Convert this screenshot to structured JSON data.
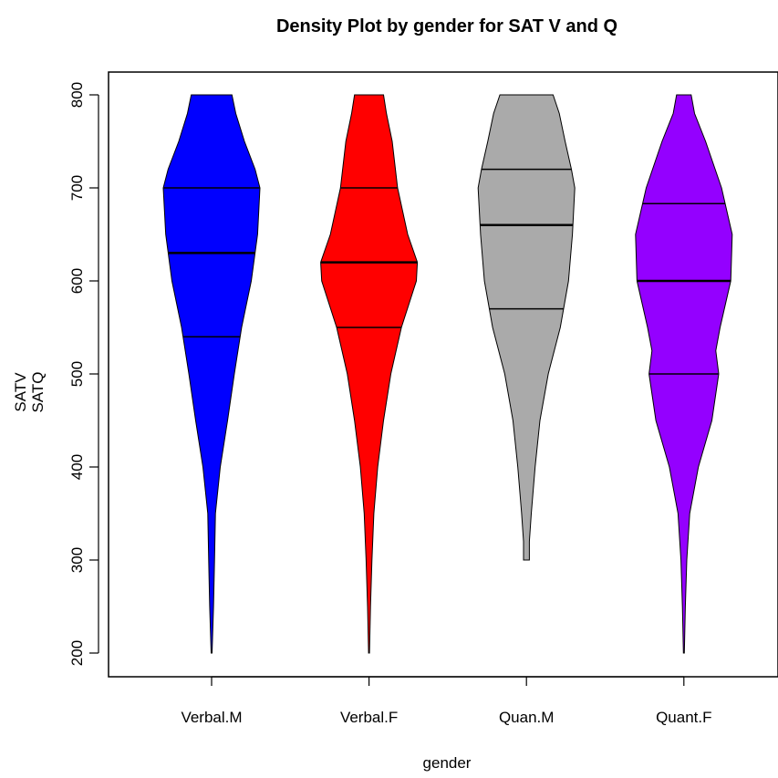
{
  "chart_data": {
    "type": "violin",
    "title": "Density Plot by gender for SAT V and Q",
    "xlabel": "gender",
    "ylabel_lines": [
      "SATV",
      "SATQ"
    ],
    "ylim": [
      200,
      800
    ],
    "yticks": [
      200,
      300,
      400,
      500,
      600,
      700,
      800
    ],
    "ytick_labels": [
      "200",
      "300",
      "400",
      "500",
      "600",
      "700",
      "800"
    ],
    "categories": [
      "Verbal.M",
      "Verbal.F",
      "Quan.M",
      "Quant.F"
    ],
    "grid": false,
    "violins": [
      {
        "category": "Verbal.M",
        "color": "#0000FF",
        "min": 200,
        "max": 800,
        "quartiles": [
          540,
          630,
          700
        ],
        "density": [
          [
            200,
            0.01
          ],
          [
            250,
            0.04
          ],
          [
            300,
            0.06
          ],
          [
            350,
            0.08
          ],
          [
            400,
            0.18
          ],
          [
            450,
            0.33
          ],
          [
            500,
            0.47
          ],
          [
            550,
            0.62
          ],
          [
            600,
            0.82
          ],
          [
            650,
            0.95
          ],
          [
            700,
            1.0
          ],
          [
            720,
            0.9
          ],
          [
            750,
            0.68
          ],
          [
            780,
            0.5
          ],
          [
            800,
            0.42
          ]
        ]
      },
      {
        "category": "Verbal.F",
        "color": "#FF0000",
        "min": 200,
        "max": 800,
        "quartiles": [
          550,
          620,
          700
        ],
        "density": [
          [
            200,
            0.01
          ],
          [
            250,
            0.03
          ],
          [
            300,
            0.06
          ],
          [
            350,
            0.1
          ],
          [
            400,
            0.18
          ],
          [
            450,
            0.3
          ],
          [
            500,
            0.45
          ],
          [
            550,
            0.67
          ],
          [
            600,
            0.98
          ],
          [
            620,
            1.0
          ],
          [
            650,
            0.8
          ],
          [
            700,
            0.59
          ],
          [
            750,
            0.48
          ],
          [
            780,
            0.36
          ],
          [
            800,
            0.3
          ]
        ]
      },
      {
        "category": "Quan.M",
        "color": "#AAAAAA",
        "min": 300,
        "max": 800,
        "quartiles": [
          570,
          660,
          720
        ],
        "density": [
          [
            300,
            0.06
          ],
          [
            320,
            0.06
          ],
          [
            350,
            0.1
          ],
          [
            400,
            0.18
          ],
          [
            450,
            0.28
          ],
          [
            500,
            0.45
          ],
          [
            550,
            0.7
          ],
          [
            600,
            0.87
          ],
          [
            650,
            0.95
          ],
          [
            700,
            1.0
          ],
          [
            720,
            0.93
          ],
          [
            750,
            0.8
          ],
          [
            780,
            0.68
          ],
          [
            800,
            0.55
          ]
        ]
      },
      {
        "category": "Quant.F",
        "color": "#9400FF",
        "min": 200,
        "max": 800,
        "quartiles": [
          500,
          600,
          683
        ],
        "density": [
          [
            200,
            0.01
          ],
          [
            250,
            0.03
          ],
          [
            300,
            0.06
          ],
          [
            350,
            0.12
          ],
          [
            400,
            0.3
          ],
          [
            450,
            0.58
          ],
          [
            500,
            0.72
          ],
          [
            525,
            0.66
          ],
          [
            550,
            0.75
          ],
          [
            600,
            0.97
          ],
          [
            650,
            1.0
          ],
          [
            700,
            0.78
          ],
          [
            750,
            0.45
          ],
          [
            780,
            0.22
          ],
          [
            800,
            0.15
          ]
        ]
      }
    ]
  }
}
